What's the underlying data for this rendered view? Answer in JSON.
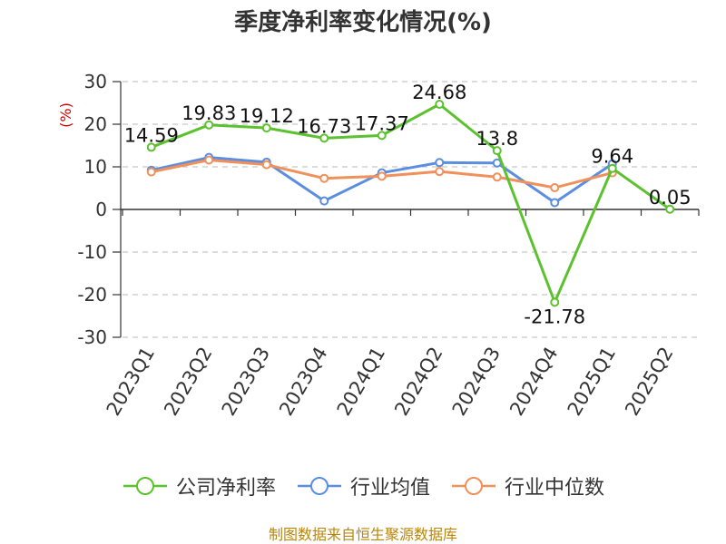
{
  "title": "季度净利率变化情况(%)",
  "unit_label": "(%)",
  "source": "制图数据来自恒生聚源数据库",
  "chart_data": {
    "type": "line",
    "categories": [
      "2023Q1",
      "2023Q2",
      "2023Q3",
      "2023Q4",
      "2024Q1",
      "2024Q2",
      "2024Q3",
      "2024Q4",
      "2025Q1",
      "2025Q2"
    ],
    "ylim": [
      -30,
      30
    ],
    "yticks": [
      -30,
      -20,
      -10,
      0,
      10,
      20,
      30
    ],
    "grid": true,
    "legend_position": "bottom",
    "series": [
      {
        "name": "公司净利率",
        "color": "#5cc12e",
        "values": [
          14.59,
          19.83,
          19.12,
          16.73,
          17.37,
          24.68,
          13.8,
          -21.78,
          9.64,
          0.05
        ],
        "labels": [
          "14.59",
          "19.83",
          "19.12",
          "16.73",
          "17.37",
          "24.68",
          "13.8",
          "-21.78",
          "9.64",
          "0.05"
        ]
      },
      {
        "name": "行业均值",
        "color": "#5b8de0",
        "values": [
          9.2,
          12.2,
          11.1,
          2.0,
          8.6,
          11.0,
          10.9,
          1.6,
          10.7,
          null
        ]
      },
      {
        "name": "行业中位数",
        "color": "#f0905a",
        "values": [
          8.8,
          11.6,
          10.5,
          7.3,
          7.8,
          8.9,
          7.6,
          5.1,
          8.6,
          null
        ]
      }
    ]
  }
}
